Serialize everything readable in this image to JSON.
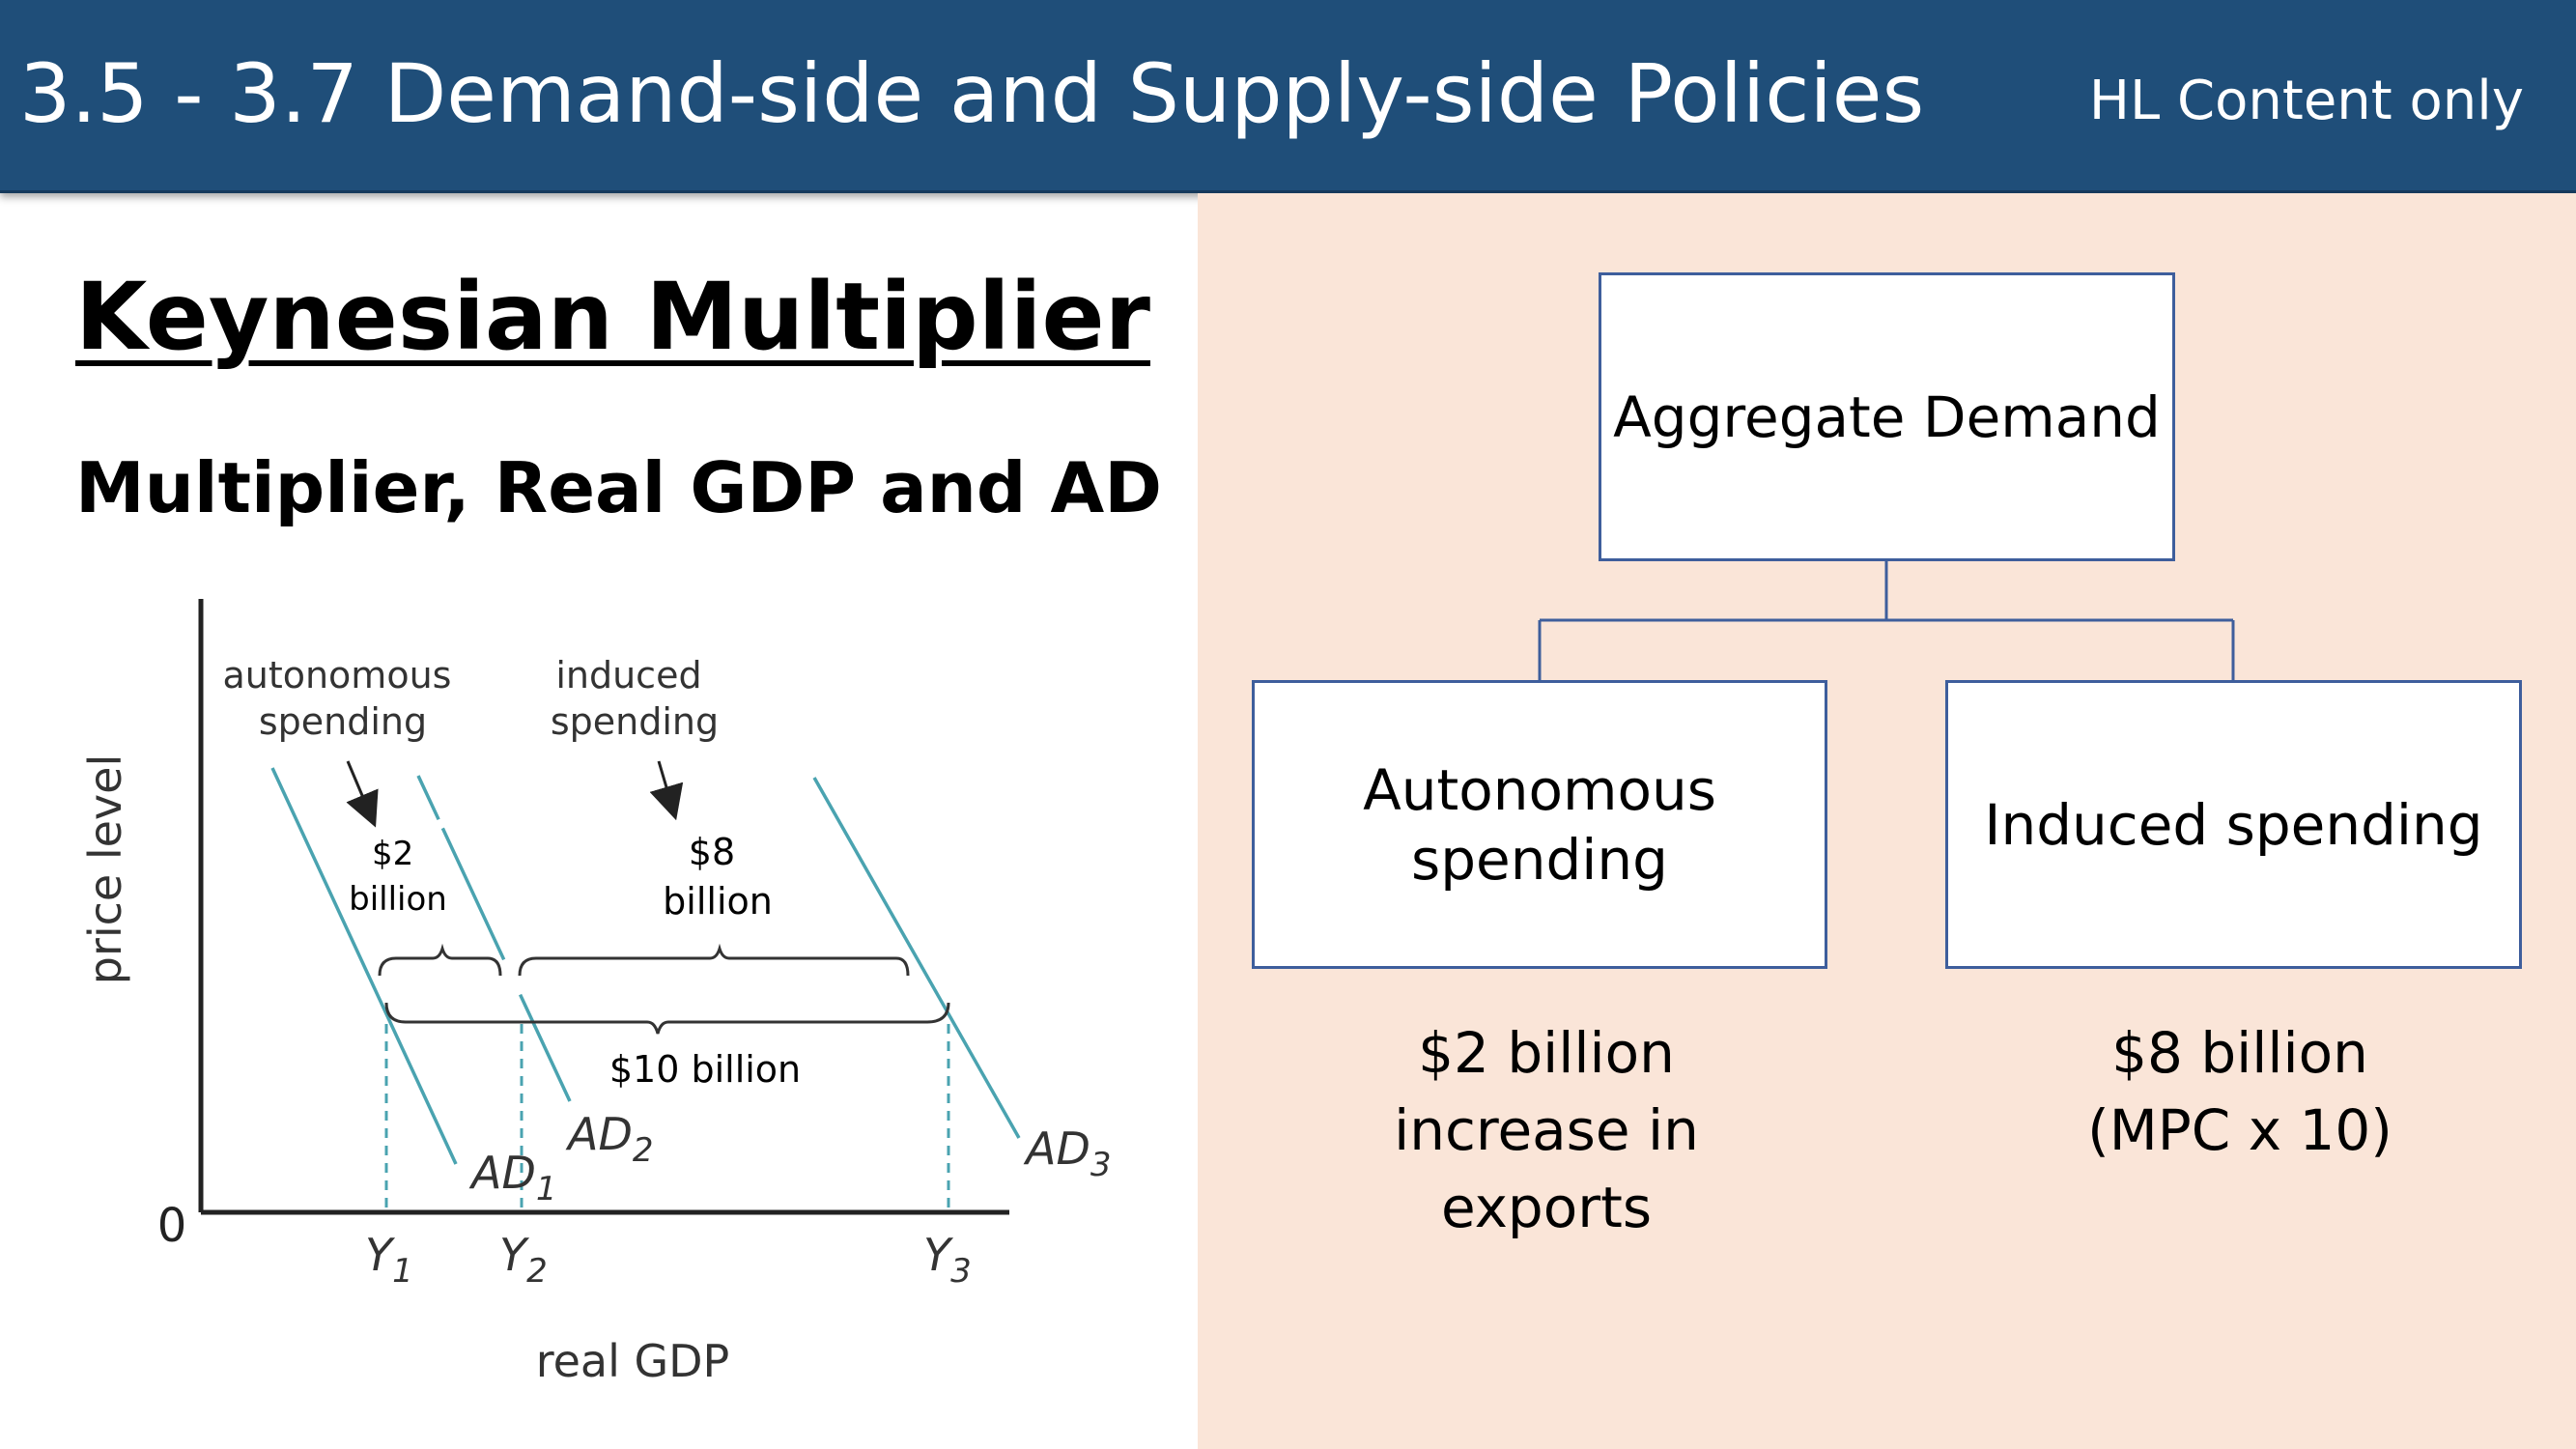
{
  "header": {
    "title": "3.5 - 3.7 Demand-side and Supply-side Policies",
    "tag": "HL Content only",
    "color": "#1f4e79"
  },
  "left": {
    "title": "Keynesian Multiplier",
    "subtitle": "Multiplier, Real GDP and AD"
  },
  "diagram": {
    "y_axis_label": "price level",
    "x_axis_label": "real GDP",
    "origin_label": "0",
    "curves": [
      {
        "name": "AD",
        "sub": "1"
      },
      {
        "name": "AD",
        "sub": "2"
      },
      {
        "name": "AD",
        "sub": "3"
      }
    ],
    "x_ticks": [
      {
        "name": "Y",
        "sub": "1"
      },
      {
        "name": "Y",
        "sub": "2"
      },
      {
        "name": "Y",
        "sub": "3"
      }
    ],
    "autonomous_label": [
      "autonomous",
      "spending"
    ],
    "induced_label": [
      "induced",
      "spending"
    ],
    "autonomous_amount": [
      "$2",
      "billion"
    ],
    "induced_amount": [
      "$8",
      "billion"
    ],
    "total_amount": "$10 billion",
    "curve_color": "#4aa3b0"
  },
  "flow": {
    "top": "Aggregate Demand",
    "left_box": [
      "Autonomous",
      "spending"
    ],
    "right_box": "Induced spending",
    "left_note": [
      "$2 billion",
      "increase in",
      "exports"
    ],
    "right_note": [
      "$8 billion",
      "(MPC x 10)"
    ],
    "box_border_color": "#3e5e9c",
    "panel_color": "#fae5d8"
  }
}
